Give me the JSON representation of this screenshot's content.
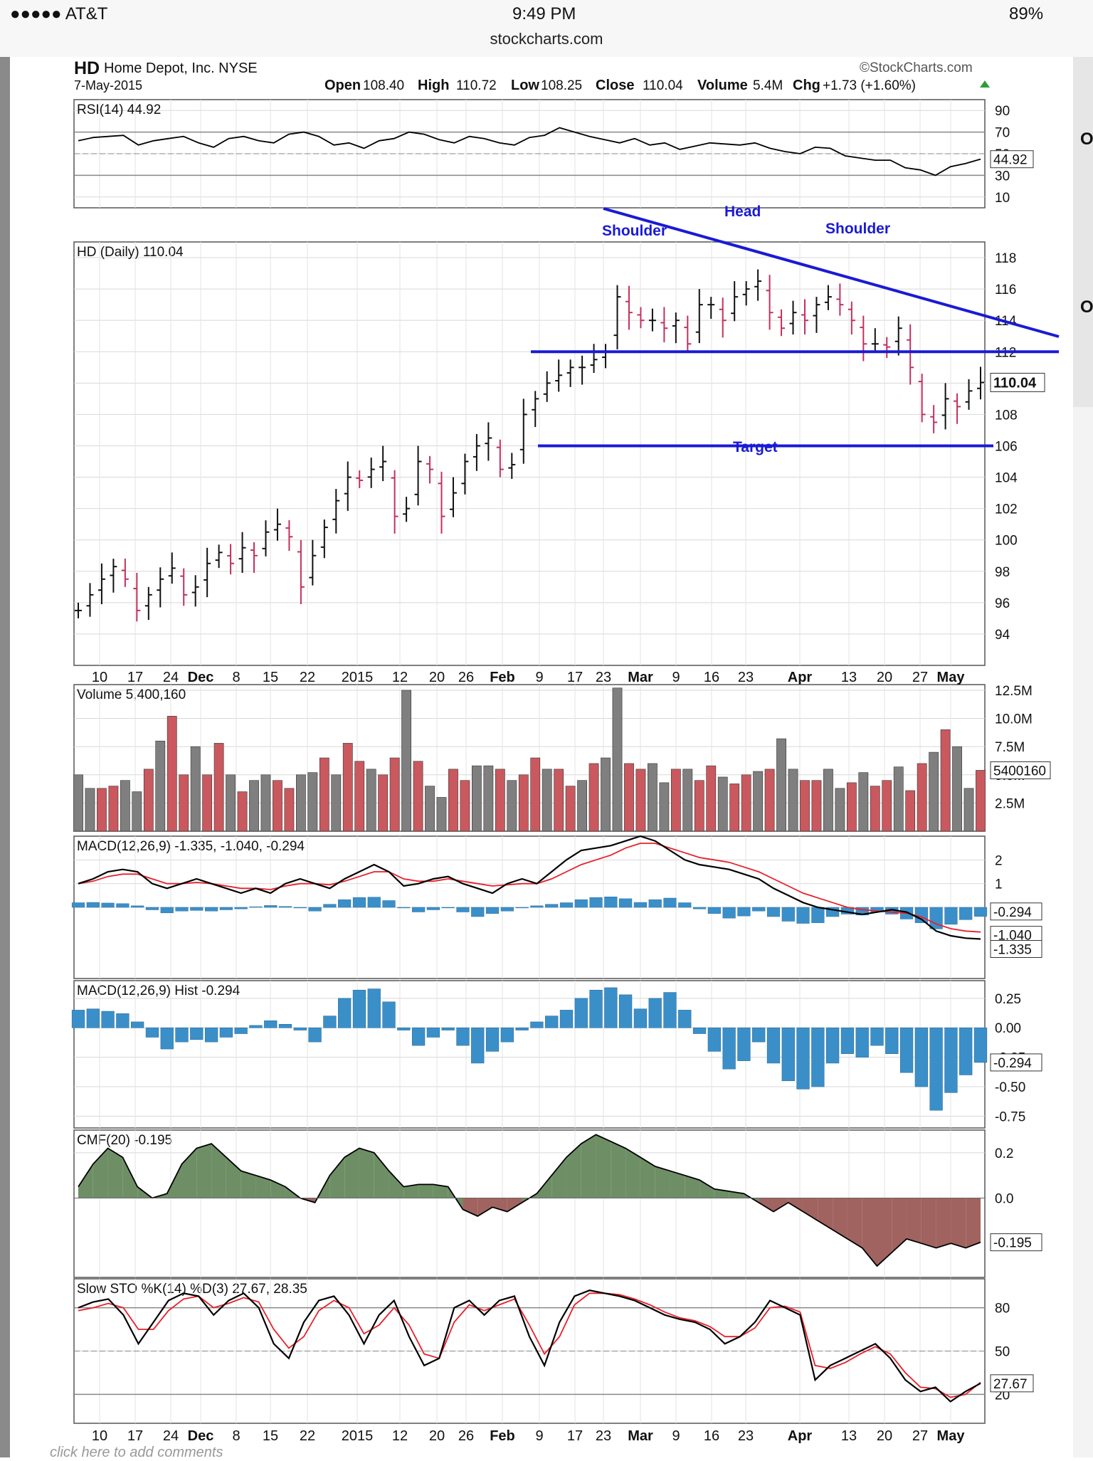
{
  "status_bar": {
    "carrier": "●●●●● AT&T",
    "time": "9:49 PM",
    "battery": "89%",
    "url": "stockcharts.com"
  },
  "header": {
    "symbol": "HD",
    "company": "Home Depot, Inc.",
    "exchange": "NYSE",
    "date": "7-May-2015",
    "brand": "©StockCharts.com",
    "open_label": "Open",
    "open": "108.40",
    "high_label": "High",
    "high": "110.72",
    "low_label": "Low",
    "low": "108.25",
    "close_label": "Close",
    "close": "110.04",
    "volume_label": "Volume",
    "volume": "5.4M",
    "chg_label": "Chg",
    "chg": "+1.73 (+1.60%)"
  },
  "footer_text": "click here to add comments",
  "edge_chars": [
    "O",
    "O"
  ],
  "x_axis": [
    "10",
    "17",
    "24",
    "Dec",
    "8",
    "15",
    "22",
    "2015",
    "12",
    "20",
    "26",
    "Feb",
    "9",
    "17",
    "23",
    "Mar",
    "9",
    "16",
    "23",
    "Apr",
    "13",
    "20",
    "27",
    "May"
  ],
  "chart_data": [
    {
      "type": "line",
      "title": "RSI(14) 44.92",
      "current_label": "44.92",
      "ylim": [
        0,
        100
      ],
      "y_ticks": [
        "90",
        "70",
        "50",
        "30",
        "10"
      ],
      "ref_lines": [
        70,
        30
      ],
      "series": [
        {
          "values": [
            62,
            65,
            66,
            67,
            58,
            62,
            64,
            66,
            60,
            56,
            64,
            66,
            62,
            60,
            68,
            70,
            66,
            58,
            60,
            55,
            62,
            64,
            70,
            68,
            63,
            60,
            66,
            64,
            60,
            58,
            65,
            67,
            74,
            70,
            66,
            63,
            60,
            64,
            58,
            60,
            54,
            57,
            60,
            59,
            58,
            60,
            55,
            52,
            50,
            56,
            55,
            48,
            46,
            44,
            44,
            37,
            35,
            30,
            38,
            41,
            45
          ]
        }
      ]
    },
    {
      "type": "line",
      "title": "HD (Daily) 110.04",
      "current_label": "110.04",
      "style": "ohlc-bars",
      "ylim": [
        92,
        119
      ],
      "y_ticks": [
        "118",
        "116",
        "114",
        "112",
        "110",
        "108",
        "106",
        "104",
        "102",
        "100",
        "98",
        "96",
        "94"
      ],
      "annotations": [
        "Shoulder",
        "Head",
        "Shoulder",
        "Target"
      ],
      "series": [
        {
          "values": [
            95.5,
            96.5,
            97.5,
            98.3,
            97.5,
            95.5,
            96.5,
            97.5,
            98.2,
            96.5,
            97.0,
            98.5,
            99.2,
            98.5,
            99.5,
            99.0,
            100.5,
            101.0,
            100.2,
            97.0,
            99.0,
            100.8,
            102.5,
            104.0,
            103.8,
            104.5,
            105.0,
            101.5,
            102.0,
            105.0,
            104.5,
            101.5,
            103.0,
            105.0,
            106.0,
            106.5,
            104.5,
            104.8,
            108.0,
            109.0,
            110.0,
            110.5,
            111.0,
            111.0,
            111.5,
            112.0,
            115.5,
            114.5,
            114.0,
            114.0,
            113.5,
            114.0,
            112.5,
            115.0,
            115.0,
            114.0,
            115.5,
            116.0,
            116.5,
            114.5,
            113.5,
            114.5,
            114.0,
            115.0,
            115.5,
            115.0,
            114.0,
            112.5,
            112.5,
            112.3,
            113.5,
            111.0,
            108.0,
            107.5,
            109.0,
            108.5,
            109.5,
            110.04
          ]
        }
      ]
    },
    {
      "type": "bar",
      "title": "Volume 5,400,160",
      "current_label": "5400160",
      "ylim": [
        0,
        13000000
      ],
      "y_ticks": [
        "12.5M",
        "10.0M",
        "7.5M",
        "5.0M",
        "2.5M"
      ],
      "series": [
        {
          "values": [
            5.0,
            3.8,
            3.8,
            4.0,
            4.5,
            3.5,
            5.5,
            8.0,
            10.2,
            5.0,
            7.5,
            5.0,
            7.8,
            5.0,
            3.5,
            4.5,
            5.0,
            4.5,
            3.8,
            5.0,
            5.2,
            6.5,
            5.0,
            7.8,
            6.2,
            5.5,
            5.0,
            6.5,
            12.5,
            6.2,
            4.0,
            3.0,
            5.5,
            4.5,
            5.8,
            5.8,
            5.5,
            4.5,
            5.0,
            6.5,
            5.5,
            5.5,
            4.0,
            4.5,
            6.0,
            6.5,
            12.7,
            6.0,
            5.5,
            6.0,
            4.3,
            5.5,
            5.5,
            4.5,
            5.8,
            4.8,
            4.2,
            5.0,
            5.3,
            5.5,
            8.2,
            5.5,
            4.5,
            4.5,
            5.5,
            3.8,
            4.3,
            5.2,
            4.0,
            4.5,
            5.7,
            3.6,
            6.0,
            7.0,
            9.0,
            7.5,
            3.8,
            5.40016
          ]
        }
      ]
    },
    {
      "type": "line",
      "title": "MACD(12,26,9) -1.335, -1.040, -0.294",
      "ylim": [
        -3,
        3
      ],
      "y_ticks": [
        "2",
        "1",
        "0"
      ],
      "current_labels": [
        "-0.294",
        "-1.040",
        "-1.335"
      ],
      "series": [
        {
          "name": "MACD",
          "color": "#000000",
          "values": [
            1.0,
            1.2,
            1.5,
            1.6,
            1.5,
            1.0,
            0.8,
            1.0,
            1.2,
            1.0,
            0.8,
            0.6,
            0.8,
            0.6,
            1.0,
            1.2,
            1.0,
            0.8,
            1.2,
            1.5,
            1.8,
            1.5,
            0.9,
            1.0,
            1.2,
            1.3,
            1.0,
            0.8,
            0.6,
            1.0,
            1.2,
            1.0,
            1.5,
            2.0,
            2.4,
            2.5,
            2.6,
            2.8,
            3.0,
            2.8,
            2.4,
            2.0,
            1.8,
            1.7,
            1.6,
            1.4,
            1.2,
            0.8,
            0.5,
            0.2,
            0.0,
            -0.1,
            -0.2,
            -0.3,
            -0.2,
            -0.1,
            -0.2,
            -0.5,
            -1.0,
            -1.2,
            -1.3,
            -1.335
          ]
        },
        {
          "name": "Signal",
          "color": "#e8202a",
          "values": [
            1.0,
            1.1,
            1.3,
            1.4,
            1.4,
            1.2,
            1.0,
            1.0,
            1.05,
            1.0,
            0.9,
            0.8,
            0.8,
            0.75,
            0.9,
            1.0,
            1.0,
            0.95,
            1.1,
            1.3,
            1.5,
            1.5,
            1.2,
            1.1,
            1.1,
            1.2,
            1.1,
            1.0,
            0.9,
            0.95,
            1.0,
            1.0,
            1.2,
            1.5,
            1.8,
            2.0,
            2.2,
            2.5,
            2.7,
            2.7,
            2.5,
            2.3,
            2.1,
            2.0,
            1.9,
            1.7,
            1.5,
            1.2,
            0.9,
            0.6,
            0.4,
            0.2,
            0.0,
            -0.1,
            -0.15,
            -0.2,
            -0.25,
            -0.4,
            -0.7,
            -0.9,
            -1.0,
            -1.04
          ]
        }
      ]
    },
    {
      "type": "bar",
      "title": "MACD(12,26,9) Hist -0.294",
      "current_label": "-0.294",
      "ylim": [
        -0.85,
        0.4
      ],
      "y_ticks": [
        "0.25",
        "0.00",
        "-0.25",
        "-0.50",
        "-0.75"
      ],
      "series": [
        {
          "values": [
            0.15,
            0.16,
            0.14,
            0.12,
            0.05,
            -0.08,
            -0.18,
            -0.12,
            -0.1,
            -0.12,
            -0.08,
            -0.05,
            0.02,
            0.06,
            0.03,
            -0.02,
            -0.12,
            0.1,
            0.25,
            0.32,
            0.33,
            0.22,
            -0.02,
            -0.15,
            -0.08,
            -0.02,
            -0.15,
            -0.3,
            -0.2,
            -0.12,
            -0.02,
            0.05,
            0.1,
            0.15,
            0.25,
            0.32,
            0.34,
            0.28,
            0.16,
            0.25,
            0.3,
            0.15,
            -0.05,
            -0.2,
            -0.35,
            -0.28,
            -0.12,
            -0.3,
            -0.45,
            -0.52,
            -0.5,
            -0.3,
            -0.22,
            -0.25,
            -0.15,
            -0.22,
            -0.38,
            -0.5,
            -0.7,
            -0.55,
            -0.4,
            -0.294
          ]
        }
      ]
    },
    {
      "type": "area",
      "title": "CMF(20) -0.195",
      "current_label": "-0.195",
      "ylim": [
        -0.35,
        0.3
      ],
      "y_ticks": [
        "0.2",
        "0.0"
      ],
      "series": [
        {
          "values": [
            0.05,
            0.15,
            0.22,
            0.18,
            0.05,
            0.0,
            0.02,
            0.15,
            0.22,
            0.24,
            0.18,
            0.12,
            0.1,
            0.08,
            0.05,
            0.0,
            -0.02,
            0.1,
            0.18,
            0.22,
            0.2,
            0.12,
            0.05,
            0.06,
            0.06,
            0.05,
            -0.05,
            -0.08,
            -0.04,
            -0.06,
            -0.02,
            0.02,
            0.1,
            0.18,
            0.24,
            0.28,
            0.25,
            0.22,
            0.18,
            0.14,
            0.12,
            0.1,
            0.08,
            0.04,
            0.03,
            0.02,
            -0.02,
            -0.06,
            -0.02,
            -0.06,
            -0.1,
            -0.14,
            -0.18,
            -0.22,
            -0.3,
            -0.24,
            -0.18,
            -0.2,
            -0.22,
            -0.2,
            -0.22,
            -0.195
          ]
        }
      ]
    },
    {
      "type": "line",
      "title": "Slow STO %K(14) %D(3) 27.67, 28.35",
      "ylim": [
        0,
        100
      ],
      "y_ticks": [
        "80",
        "50",
        "20"
      ],
      "ref_lines": [
        80,
        20
      ],
      "current_label": "27.67",
      "series": [
        {
          "name": "%K",
          "color": "#000000",
          "values": [
            80,
            84,
            86,
            75,
            55,
            70,
            85,
            90,
            88,
            75,
            85,
            90,
            80,
            55,
            45,
            70,
            85,
            88,
            75,
            55,
            75,
            85,
            60,
            40,
            45,
            80,
            85,
            75,
            85,
            88,
            60,
            40,
            70,
            88,
            92,
            90,
            88,
            85,
            80,
            75,
            72,
            70,
            65,
            55,
            60,
            70,
            85,
            80,
            75,
            30,
            40,
            45,
            50,
            55,
            45,
            30,
            22,
            25,
            15,
            22,
            27.67
          ]
        },
        {
          "name": "%D",
          "color": "#e8202a",
          "values": [
            78,
            80,
            83,
            80,
            65,
            65,
            78,
            86,
            88,
            80,
            83,
            87,
            84,
            65,
            52,
            60,
            78,
            85,
            80,
            62,
            68,
            80,
            68,
            48,
            45,
            70,
            82,
            78,
            82,
            86,
            68,
            48,
            60,
            82,
            90,
            90,
            89,
            86,
            82,
            77,
            73,
            71,
            67,
            60,
            60,
            66,
            80,
            81,
            77,
            40,
            38,
            42,
            48,
            53,
            48,
            35,
            25,
            24,
            18,
            20,
            28.35
          ]
        }
      ]
    }
  ]
}
